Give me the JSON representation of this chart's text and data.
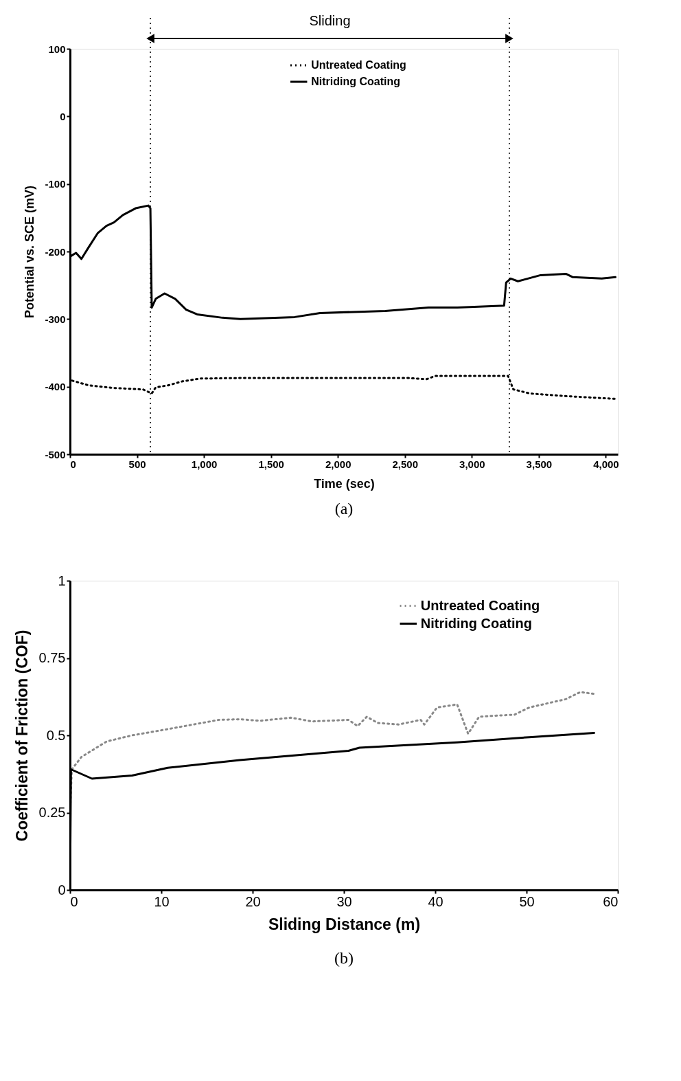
{
  "chart_data": [
    {
      "type": "line",
      "xlabel": "Time (sec)",
      "ylabel": "Potential vs. SCE (mV)",
      "xlim": [
        0,
        4090
      ],
      "ylim": [
        -500,
        100
      ],
      "xticks": [
        0,
        500,
        {
          "value": 1000,
          "label": "1,000"
        },
        {
          "value": 1500,
          "label": "1,500"
        },
        {
          "value": 2000,
          "label": "2,000"
        },
        {
          "value": 2500,
          "label": "2,500"
        },
        {
          "value": 3000,
          "label": "3,000"
        },
        {
          "value": 3500,
          "label": "3,500"
        },
        {
          "value": 4000,
          "label": "4,000"
        }
      ],
      "yticks": [
        -500,
        -400,
        -300,
        -200,
        -100,
        0,
        100
      ],
      "grid": false,
      "legend": "top",
      "marker": "none",
      "ref_lines": [
        {
          "axis": "x",
          "value": 600,
          "line_style": "dotted"
        },
        {
          "axis": "x",
          "value": 3280,
          "line_style": "dotted"
        }
      ],
      "annotations": [
        "Sliding",
        "(a)"
      ],
      "series": [
        {
          "name": "Untreated Coating",
          "color": "#000000",
          "line_style": "dotted",
          "x": [
            16,
            138,
            328,
            544,
            610,
            640,
            733,
            841,
            974,
            1327,
            2083,
            2514,
            2661,
            2728,
            3270,
            3310,
            3431,
            3702,
            4072
          ],
          "values": [
            -391,
            -398,
            -402,
            -404,
            -410,
            -401,
            -398,
            -392,
            -388,
            -387,
            -387,
            -387,
            -389,
            -384,
            -384,
            -404,
            -410,
            -414,
            -418
          ]
        },
        {
          "name": "Nitriding Coating",
          "color": "#000000",
          "line_style": "solid",
          "x": [
            4,
            45,
            85,
            138,
            206,
            272,
            328,
            395,
            490,
            585,
            600,
            610,
            640,
            706,
            785,
            867,
            949,
            1138,
            1272,
            1677,
            1867,
            2354,
            2677,
            2892,
            3241,
            3256,
            3290,
            3344,
            3513,
            3702,
            3754,
            3970,
            4072
          ],
          "values": [
            -207,
            -202,
            -211,
            -194,
            -173,
            -162,
            -157,
            -146,
            -136,
            -132,
            -136,
            -283,
            -270,
            -262,
            -270,
            -286,
            -293,
            -298,
            -300,
            -297,
            -291,
            -288,
            -283,
            -283,
            -280,
            -246,
            -240,
            -244,
            -235,
            -233,
            -238,
            -240,
            -238
          ]
        }
      ]
    },
    {
      "type": "line",
      "xlabel": "Sliding Distance (m)",
      "ylabel": "Coefficient of Friction (COF)",
      "xlim": [
        0,
        60
      ],
      "ylim": [
        0,
        1
      ],
      "xticks": [
        0,
        10,
        20,
        30,
        40,
        50,
        60
      ],
      "yticks": [
        0,
        0.25,
        0.5,
        0.75,
        1
      ],
      "grid": false,
      "legend": "right",
      "marker": "none",
      "annotations": [
        "(b)"
      ],
      "series": [
        {
          "name": "Untreated Coating",
          "color": "#888888",
          "line_style": "dotted",
          "x": [
            0,
            0.2,
            1.25,
            4,
            6.8,
            10.7,
            16.3,
            18.6,
            20.8,
            24.2,
            26.5,
            30.5,
            31.5,
            32.5,
            33.7,
            36,
            38.4,
            38.8,
            40.2,
            42.4,
            43.6,
            44.8,
            46.3,
            48.7,
            50.3,
            54.3,
            55.9,
            57.4
          ],
          "values": [
            0.25,
            0.39,
            0.43,
            0.48,
            0.5,
            0.52,
            0.55,
            0.552,
            0.547,
            0.557,
            0.545,
            0.55,
            0.53,
            0.56,
            0.54,
            0.535,
            0.55,
            0.535,
            0.59,
            0.6,
            0.505,
            0.56,
            0.563,
            0.567,
            0.59,
            0.617,
            0.64,
            0.634
          ]
        },
        {
          "name": "Nitriding Coating",
          "color": "#000000",
          "line_style": "solid",
          "x": [
            0,
            0.1,
            2.4,
            6.8,
            10.7,
            18.6,
            30.5,
            31.7,
            42.4,
            50.3,
            57.4
          ],
          "values": [
            0,
            0.39,
            0.36,
            0.37,
            0.395,
            0.42,
            0.45,
            0.46,
            0.477,
            0.494,
            0.508
          ]
        }
      ]
    }
  ]
}
